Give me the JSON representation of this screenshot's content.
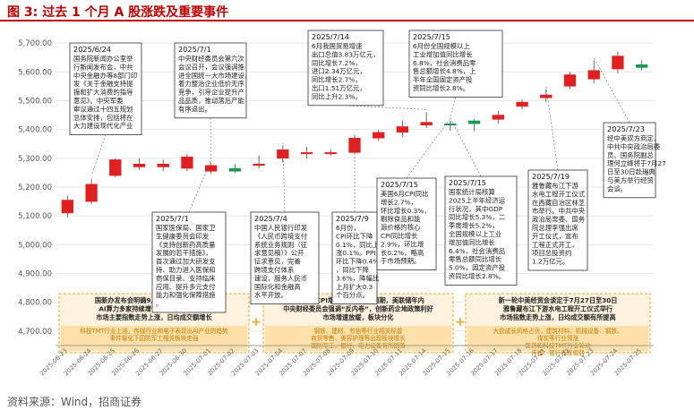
{
  "title": "图 3: 过去 1 个月 A 股涨跌及重要事件",
  "source": "资料来源：Wind，招商证券",
  "colors": {
    "up": "#e02020",
    "down": "#1a9850",
    "accent": "#c00000",
    "box_border": "#333333",
    "bottom_border": "#f5a623",
    "bottom_fill": "#fff3e0",
    "bottom_fill_hi": "#ffe0a8"
  },
  "chart_data": {
    "type": "candlestick",
    "ylim": [
      4650,
      5750
    ],
    "yticks": [
      4700,
      4800,
      4900,
      5000,
      5100,
      5200,
      5300,
      5400,
      5500,
      5600,
      5700
    ],
    "ytick_labels": [
      "4,700.00",
      "4,800.00",
      "4,900.00",
      "5,000.00",
      "5,100.00",
      "5,200.00",
      "5,300.00",
      "5,400.00",
      "5,500.00",
      "5,600.00",
      "5,700.00"
    ],
    "dates": [
      "2025-06-23",
      "2025-06-24",
      "2025-06-25",
      "2025-06-26",
      "2025-06-27",
      "2025-06-30",
      "2025-07-01",
      "2025-07-02",
      "2025-07-03",
      "2025-07-04",
      "2025-07-07",
      "2025-07-08",
      "2025-07-09",
      "2025-07-10",
      "2025-07-11",
      "2025-07-14",
      "2025-07-15",
      "2025-07-16",
      "2025-07-17",
      "2025-07-18",
      "2025-07-21",
      "2025-07-22",
      "2025-07-23",
      "2025-07-24",
      "2025-07-25"
    ],
    "open": [
      5110,
      5150,
      5240,
      5270,
      5270,
      5265,
      5255,
      5265,
      5275,
      5300,
      5320,
      5320,
      5320,
      5370,
      5390,
      5415,
      5420,
      5430,
      5435,
      5480,
      5510,
      5550,
      5575,
      5610,
      5625
    ],
    "close": [
      5155,
      5210,
      5295,
      5280,
      5280,
      5305,
      5275,
      5255,
      5280,
      5330,
      5320,
      5320,
      5370,
      5390,
      5410,
      5425,
      5415,
      5420,
      5450,
      5495,
      5520,
      5590,
      5605,
      5655,
      5615
    ],
    "high": [
      5170,
      5230,
      5300,
      5300,
      5295,
      5315,
      5285,
      5280,
      5310,
      5345,
      5340,
      5330,
      5380,
      5400,
      5430,
      5460,
      5430,
      5435,
      5465,
      5505,
      5540,
      5600,
      5640,
      5670,
      5640
    ],
    "low": [
      5095,
      5140,
      5235,
      5260,
      5255,
      5255,
      5245,
      5250,
      5265,
      5285,
      5300,
      5310,
      5315,
      5360,
      5375,
      5405,
      5395,
      5395,
      5420,
      5470,
      5495,
      5540,
      5560,
      5595,
      5605
    ]
  },
  "annotations": [
    {
      "date_label": "2025/6/24",
      "lines": [
        "国务院新闻办公室举",
        "行新闻发布会，中共",
        "中央金融办等8部门印",
        "发《关于金融支持提",
        "振和扩大消费的指导",
        "意见》。中央军委",
        "审议通过十四五规划",
        "总体安排，包括将在",
        "大力建设现代化产业"
      ]
    },
    {
      "date_label": "2025/7/1",
      "lines": [
        "中央财经委员会第六次",
        "会议召开，会议强调推",
        "进全国统一大市场建设，",
        "着力整治企业低价无序",
        "竞争，引导企业提升产",
        "品品质，推动落后产能",
        "有序退出。"
      ]
    },
    {
      "date_label": "2025/7/14",
      "lines": [
        "6月我国贸易增速",
        "出口总值3.83万亿元，",
        "同比增长7.2%，",
        "进口2.34万亿元，",
        "同比增长2.7%，",
        "出口1.51万亿元，",
        "同比上升2.3%。"
      ]
    },
    {
      "date_label": "2025/7/15",
      "lines": [
        "6月份全国规模以上",
        "工业增加值同比增长",
        "6.8%，社会消费品零",
        "售总额增长4.8%，上",
        "半年全国固定资产投",
        "资同比增长2.8%。"
      ]
    },
    {
      "date_label": "2025/7/1",
      "lines": [
        "国家医保局、国家卫",
        "生健康委员会印发",
        "《支持创新药高质量",
        "发展的若干措施》，",
        "首次通过加大研发支",
        "持、助力进入医保和",
        "商保目录、支持临床",
        "应用、提升多元支付",
        "能力和强化保障措施",
        "。"
      ]
    },
    {
      "date_label": "2025/7/4",
      "lines": [
        "中国人民银行印发",
        "《人民币跨境支付",
        "系统业务规则（征",
        "求意见稿）》公开",
        "征求意见，完善",
        "跨境支付体系",
        "建设，服务人民币",
        "国际化和金融高",
        "水平开放。"
      ]
    },
    {
      "date_label": "2025/7/9",
      "lines": [
        "6月份，",
        "CPI环比下降",
        "0.1%，同比上",
        "涨0.1%。PPI",
        "环比下降0.4%",
        "，同比下降",
        "3.6%，降幅比",
        "上月扩大0.3",
        "个百分点。"
      ]
    },
    {
      "date_label": "2025/7/15",
      "lines": [
        "美国6月CPI同比",
        "增长2.7%，",
        "环比增长0.3%，",
        "剔除食品和能",
        "源价格的核心",
        "CPI同比增长",
        "2.9%，环比增",
        "长0.2%，略高",
        "于市场预期。"
      ]
    },
    {
      "date_label": "2025/7/15",
      "lines": [
        "国家统计局核算",
        "2025上半年经济运",
        "行状况，其中GDP",
        "同比增长5.3%，二",
        "季度增长5.2%，",
        "全国规模以上工业",
        "增加值同比增长",
        "6.4%，社会消费品",
        "零售总额同比增长",
        "5.0%，固定资产投",
        "资同比增长2.8%。"
      ]
    },
    {
      "date_label": "2025/7/19",
      "lines": [
        "雅鲁藏布江下游",
        "水电工程开工仪式",
        "在西藏自治区林芝",
        "市举行。中共中央",
        "政治局常委、国务",
        "院总理李强出席",
        "开工仪式，宣布",
        "工程正式开工，",
        "项目总投资约",
        "1.2万亿元。"
      ]
    },
    {
      "date_label": "2025/7/23",
      "lines": [
        "经中美双方商定，",
        "中共中央政治局委",
        "员、国务院副总",
        "理何立峰将于7月27",
        "日至30日赴瑞典",
        "与美方举行经贸",
        "会谈。"
      ]
    }
  ],
  "bottom_boxes": [
    {
      "main": "国新办发布会明确9月3日将举行阅兵活动\nAI算力多家持续增长，多款新产品落地\n市场主要指数走势上涨，日均成交额增长",
      "sub": "科技TMT行业上涨，传媒行业和电子表现出AI产业的趋势\n事件催化下国防军工相关板块走强"
    },
    {
      "main": "美国6月CPI增速略高于市场预期，美联储年内\n中央财经委员会强调“反内卷”，创新药企地政策利好\n市场增速放缓，板块分化",
      "sub": "钢铁、建材、有色等行业相关标普\n商贸零售、美容护理等出现板块增长\n国防军工、银行、电力设备有所回落"
    },
    {
      "main": "新一轮中美经贸会谈定于7月27日至30日\n雅鲁藏布江下游水电工程开工仪式举行\n市场指数走势上涨，日均成交额有所提高",
      "sub": "大盘成长风格占优，建筑材料、机械设备、钢铁、\n煤炭等行业领涨\n医药和科技TMT行业轮动\n传媒、银行表现偏弱"
    }
  ]
}
